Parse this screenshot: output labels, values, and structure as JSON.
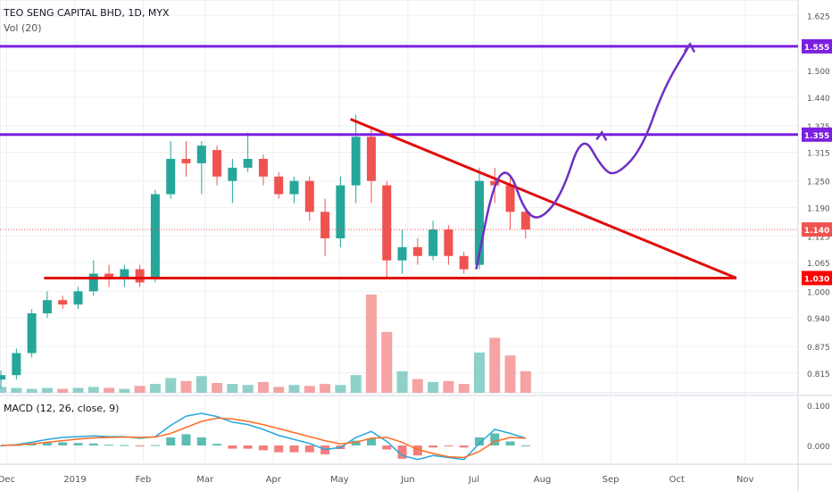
{
  "header": {
    "symbol": "TEO SENG CAPITAL BHD, 1D, MYX",
    "volume_label": "Vol (20)",
    "macd_label": "MACD (12, 26, close, 9)"
  },
  "colors": {
    "up": "#26a69a",
    "down": "#ef5350",
    "vol_up": "#8fd0c9",
    "vol_down": "#f5a3a3",
    "level": "#7b1fe0",
    "trend": "#e10b0b",
    "path": "#6e2fc4",
    "macd_line": "#26a8dc",
    "signal_line": "#ff6d24",
    "grid": "#eef0f3"
  },
  "chart_data": [
    {
      "type": "candlestick",
      "title": "TEO SENG CAPITAL BHD, 1D, MYX",
      "y_ticks": [
        "1.625",
        "1.565",
        "1.500",
        "1.440",
        "1.375",
        "1.315",
        "1.250",
        "1.190",
        "1.125",
        "1.065",
        "1.000",
        "0.940",
        "0.875",
        "0.815"
      ],
      "y_range": [
        0.77,
        1.66
      ],
      "x_ticks": [
        "Dec",
        "2019",
        "Feb",
        "Mar",
        "Apr",
        "May",
        "Jun",
        "Jul",
        "Aug",
        "Sep",
        "Oct",
        "Nov"
      ],
      "x_range": [
        "2018-11-28",
        "2019-11-25"
      ],
      "price_labels": [
        {
          "text": "1.555",
          "value": 1.555,
          "style": "level"
        },
        {
          "text": "1.355",
          "value": 1.355,
          "style": "level"
        },
        {
          "text": "1.140",
          "value": 1.14,
          "style": "last"
        },
        {
          "text": "1.030",
          "value": 1.03,
          "style": "trend"
        }
      ],
      "last_price": 1.14,
      "horizontal_levels": [
        {
          "value": 1.555,
          "color": "level"
        },
        {
          "value": 1.355,
          "color": "level"
        }
      ],
      "trend_lines": [
        {
          "from": [
            "2018-12-18",
            1.03
          ],
          "to": [
            "2019-10-28",
            1.03
          ]
        },
        {
          "from": [
            "2019-05-06",
            1.39
          ],
          "to": [
            "2019-10-28",
            1.03
          ]
        }
      ],
      "projection_path": [
        [
          "2019-07-02",
          1.05
        ],
        [
          "2019-07-10",
          1.25
        ],
        [
          "2019-07-17",
          1.28
        ],
        [
          "2019-07-24",
          1.18
        ],
        [
          "2019-07-31",
          1.16
        ],
        [
          "2019-08-10",
          1.22
        ],
        [
          "2019-08-19",
          1.36
        ],
        [
          "2019-08-28",
          1.28
        ],
        [
          "2019-09-03",
          1.26
        ],
        [
          "2019-09-15",
          1.32
        ],
        [
          "2019-09-25",
          1.46
        ],
        [
          "2019-10-07",
          1.56
        ]
      ],
      "candles_weekly_ohlc": [
        [
          "2018-11-26",
          0.8,
          0.82,
          0.78,
          0.81
        ],
        [
          "2018-12-03",
          0.81,
          0.87,
          0.8,
          0.86
        ],
        [
          "2018-12-10",
          0.86,
          0.96,
          0.85,
          0.95
        ],
        [
          "2018-12-17",
          0.95,
          1.0,
          0.94,
          0.98
        ],
        [
          "2018-12-24",
          0.98,
          0.99,
          0.96,
          0.97
        ],
        [
          "2018-12-31",
          0.97,
          1.01,
          0.96,
          1.0
        ],
        [
          "2019-01-07",
          1.0,
          1.07,
          0.99,
          1.04
        ],
        [
          "2019-01-14",
          1.04,
          1.06,
          1.01,
          1.03
        ],
        [
          "2019-01-21",
          1.03,
          1.06,
          1.01,
          1.05
        ],
        [
          "2019-01-28",
          1.05,
          1.06,
          1.01,
          1.02
        ],
        [
          "2019-02-04",
          1.03,
          1.23,
          1.02,
          1.22
        ],
        [
          "2019-02-11",
          1.22,
          1.34,
          1.21,
          1.3
        ],
        [
          "2019-02-18",
          1.3,
          1.34,
          1.26,
          1.29
        ],
        [
          "2019-02-25",
          1.29,
          1.34,
          1.22,
          1.33
        ],
        [
          "2019-03-04",
          1.32,
          1.33,
          1.24,
          1.26
        ],
        [
          "2019-03-11",
          1.25,
          1.3,
          1.2,
          1.28
        ],
        [
          "2019-03-18",
          1.28,
          1.36,
          1.27,
          1.3
        ],
        [
          "2019-03-25",
          1.3,
          1.31,
          1.24,
          1.26
        ],
        [
          "2019-04-01",
          1.26,
          1.27,
          1.21,
          1.22
        ],
        [
          "2019-04-08",
          1.22,
          1.26,
          1.2,
          1.25
        ],
        [
          "2019-04-15",
          1.25,
          1.26,
          1.16,
          1.18
        ],
        [
          "2019-04-22",
          1.18,
          1.21,
          1.08,
          1.12
        ],
        [
          "2019-04-29",
          1.12,
          1.26,
          1.1,
          1.24
        ],
        [
          "2019-05-06",
          1.24,
          1.4,
          1.2,
          1.35
        ],
        [
          "2019-05-13",
          1.35,
          1.37,
          1.2,
          1.25
        ],
        [
          "2019-05-20",
          1.24,
          1.25,
          1.03,
          1.07
        ],
        [
          "2019-05-27",
          1.07,
          1.14,
          1.04,
          1.1
        ],
        [
          "2019-06-03",
          1.1,
          1.12,
          1.06,
          1.08
        ],
        [
          "2019-06-10",
          1.08,
          1.16,
          1.07,
          1.14
        ],
        [
          "2019-06-17",
          1.14,
          1.15,
          1.06,
          1.08
        ],
        [
          "2019-06-24",
          1.08,
          1.09,
          1.04,
          1.05
        ],
        [
          "2019-07-01",
          1.06,
          1.28,
          1.05,
          1.25
        ],
        [
          "2019-07-08",
          1.25,
          1.28,
          1.2,
          1.24
        ],
        [
          "2019-07-15",
          1.24,
          1.26,
          1.14,
          1.18
        ],
        [
          "2019-07-22",
          1.18,
          1.19,
          1.12,
          1.14
        ]
      ]
    },
    {
      "type": "bar",
      "title": "Vol (20)",
      "values_relative": [
        0.06,
        0.05,
        0.04,
        0.05,
        0.04,
        0.05,
        0.06,
        0.05,
        0.04,
        0.07,
        0.09,
        0.15,
        0.12,
        0.17,
        0.1,
        0.09,
        0.08,
        0.11,
        0.06,
        0.08,
        0.07,
        0.09,
        0.08,
        0.18,
        1.0,
        0.62,
        0.22,
        0.14,
        0.11,
        0.12,
        0.09,
        0.41,
        0.56,
        0.38,
        0.22
      ],
      "directions": [
        "u",
        "u",
        "u",
        "u",
        "d",
        "u",
        "u",
        "d",
        "u",
        "d",
        "u",
        "u",
        "d",
        "u",
        "d",
        "u",
        "u",
        "d",
        "d",
        "u",
        "d",
        "d",
        "u",
        "u",
        "d",
        "d",
        "u",
        "d",
        "u",
        "d",
        "d",
        "u",
        "d",
        "d",
        "d"
      ]
    },
    {
      "type": "line",
      "title": "MACD (12, 26, close, 9)",
      "y_ticks": [
        "0.100",
        "0.000"
      ],
      "series": [
        {
          "name": "MACD",
          "values": [
            0.0,
            0.002,
            0.008,
            0.015,
            0.02,
            0.022,
            0.024,
            0.022,
            0.022,
            0.018,
            0.022,
            0.05,
            0.073,
            0.08,
            0.072,
            0.058,
            0.052,
            0.04,
            0.025,
            0.015,
            0.005,
            -0.01,
            -0.005,
            0.02,
            0.035,
            0.01,
            -0.025,
            -0.035,
            -0.025,
            -0.03,
            -0.035,
            0.005,
            0.04,
            0.03,
            0.018
          ]
        },
        {
          "name": "Signal",
          "values": [
            0.0,
            0.001,
            0.004,
            0.008,
            0.012,
            0.016,
            0.019,
            0.02,
            0.021,
            0.02,
            0.021,
            0.03,
            0.045,
            0.06,
            0.068,
            0.066,
            0.06,
            0.052,
            0.042,
            0.032,
            0.022,
            0.012,
            0.004,
            0.008,
            0.018,
            0.02,
            0.008,
            -0.01,
            -0.02,
            -0.028,
            -0.03,
            -0.015,
            0.01,
            0.02,
            0.018
          ]
        }
      ]
    }
  ]
}
